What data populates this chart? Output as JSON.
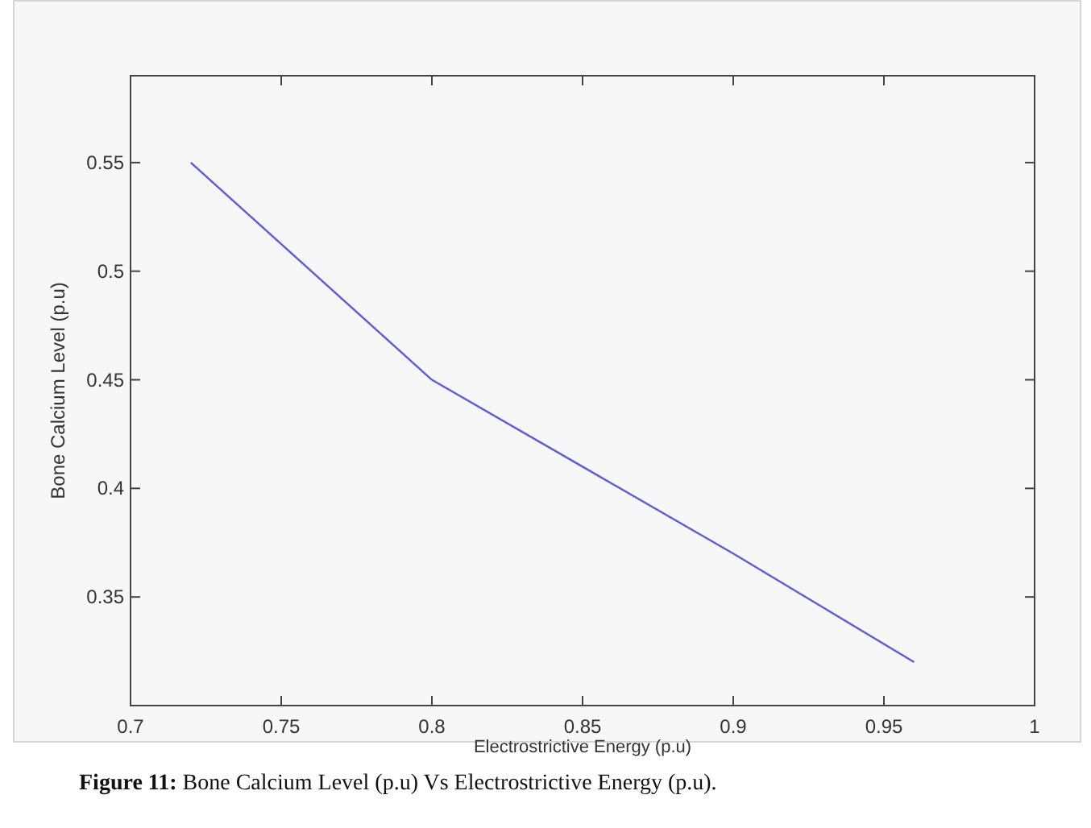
{
  "chart_data": {
    "type": "line",
    "xlabel": "Electrostrictive Energy (p.u)",
    "ylabel": "Bone Calcium Level (p.u)",
    "x": [
      0.72,
      0.8,
      0.85,
      0.9,
      0.96
    ],
    "series": [
      {
        "color": "#5a5ae6",
        "values": [
          0.55,
          0.45,
          0.41,
          0.37,
          0.32
        ]
      }
    ],
    "xlim": [
      0.7,
      1
    ],
    "xticks": [
      0.7,
      0.75,
      0.8,
      0.85,
      0.9,
      0.95,
      1
    ],
    "ylim": [
      0.3,
      0.59
    ],
    "yticks": [
      0.35,
      0.4,
      0.45,
      0.5,
      0.55
    ],
    "grid": false,
    "marker": "none",
    "line_style": "solid",
    "annotations": [
      "Figure 11: Bone Calcium Level (p.u) Vs Electrostrictive Energy (p.u)."
    ]
  }
}
